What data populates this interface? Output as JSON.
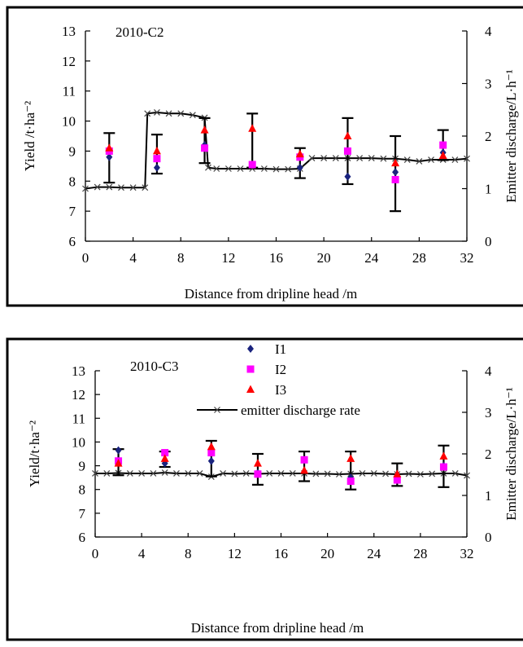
{
  "colors": {
    "I1": "#1a237e",
    "I2": "#ff00ff",
    "I3": "#ff0000",
    "emitter": "#000000"
  },
  "chart_data": [
    {
      "type": "scatter",
      "title": "2010-C2",
      "xlabel": "Distance from dripline head /m",
      "ylabel": "Yield /t·ha⁻²",
      "y2label": "Emitter discharge/L·h⁻¹",
      "xlim": [
        0,
        32
      ],
      "ylim": [
        6,
        13
      ],
      "y2lim": [
        0,
        4
      ],
      "x_ticks": [
        "0",
        "4",
        "8",
        "12",
        "16",
        "20",
        "24",
        "28",
        "32"
      ],
      "y_ticks": [
        "6",
        "7",
        "8",
        "9",
        "10",
        "11",
        "12",
        "13"
      ],
      "y2_ticks": [
        "0",
        "1",
        "2",
        "3",
        "4"
      ],
      "legend": null,
      "error_bars": [
        {
          "x": 2,
          "low": 7.95,
          "high": 9.6
        },
        {
          "x": 6,
          "low": 8.25,
          "high": 9.55
        },
        {
          "x": 10,
          "low": 8.6,
          "high": 10.1
        },
        {
          "x": 14,
          "low": 8.45,
          "high": 10.25
        },
        {
          "x": 18,
          "low": 8.1,
          "high": 9.1
        },
        {
          "x": 22,
          "low": 7.9,
          "high": 10.1
        },
        {
          "x": 26,
          "low": 7.0,
          "high": 9.5
        },
        {
          "x": 30,
          "low": 8.7,
          "high": 9.7
        }
      ],
      "series": [
        {
          "name": "I1",
          "marker": "diamond",
          "x": [
            2,
            6,
            10,
            14,
            18,
            22,
            26,
            30
          ],
          "y": [
            8.8,
            8.45,
            9.2,
            8.55,
            8.45,
            8.15,
            8.3,
            8.95
          ]
        },
        {
          "name": "I2",
          "marker": "square",
          "x": [
            2,
            6,
            10,
            14,
            18,
            22,
            26,
            30
          ],
          "y": [
            9.0,
            8.75,
            9.1,
            8.55,
            8.8,
            9.0,
            8.05,
            9.2
          ]
        },
        {
          "name": "I3",
          "marker": "triangle",
          "x": [
            2,
            6,
            10,
            14,
            18,
            22,
            26,
            30
          ],
          "y": [
            9.1,
            9.0,
            9.7,
            9.75,
            8.9,
            9.5,
            8.6,
            8.85
          ]
        },
        {
          "name": "emitter discharge rate",
          "axis": "right",
          "marker": "x",
          "line": true,
          "x": [
            0,
            1,
            2,
            3,
            4,
            5,
            5.2,
            6,
            7,
            8,
            9,
            10,
            10.3,
            11,
            12,
            13,
            14,
            15,
            16,
            17,
            18,
            19,
            20,
            21,
            22,
            23,
            24,
            25,
            26,
            27,
            28,
            29,
            30,
            31,
            32
          ],
          "y": [
            1.0,
            1.03,
            1.03,
            1.02,
            1.02,
            1.02,
            2.43,
            2.45,
            2.43,
            2.43,
            2.4,
            2.35,
            1.4,
            1.38,
            1.38,
            1.38,
            1.38,
            1.38,
            1.37,
            1.37,
            1.38,
            1.58,
            1.58,
            1.58,
            1.58,
            1.58,
            1.58,
            1.57,
            1.57,
            1.55,
            1.52,
            1.55,
            1.55,
            1.55,
            1.57
          ]
        }
      ]
    },
    {
      "type": "scatter",
      "title": "2010-C3",
      "xlabel": "Distance from dripline head /m",
      "ylabel": "Yield/t·ha⁻²",
      "y2label": "Emitter discharge/L·h⁻¹",
      "xlim": [
        0,
        32
      ],
      "ylim": [
        6,
        13
      ],
      "y2lim": [
        0,
        4
      ],
      "x_ticks": [
        "0",
        "4",
        "8",
        "12",
        "16",
        "20",
        "24",
        "28",
        "32"
      ],
      "y_ticks": [
        "6",
        "7",
        "8",
        "9",
        "10",
        "11",
        "12",
        "13"
      ],
      "y2_ticks": [
        "0",
        "1",
        "2",
        "3",
        "4"
      ],
      "legend": "top-center",
      "error_bars": [
        {
          "x": 2,
          "low": 8.6,
          "high": 9.7
        },
        {
          "x": 6,
          "low": 8.95,
          "high": 9.6
        },
        {
          "x": 10,
          "low": 8.55,
          "high": 10.05
        },
        {
          "x": 14,
          "low": 8.2,
          "high": 9.5
        },
        {
          "x": 18,
          "low": 8.35,
          "high": 9.6
        },
        {
          "x": 22,
          "low": 8.0,
          "high": 9.6
        },
        {
          "x": 26,
          "low": 8.15,
          "high": 9.1
        },
        {
          "x": 30,
          "low": 8.1,
          "high": 9.85
        }
      ],
      "series": [
        {
          "name": "I1",
          "marker": "diamond",
          "x": [
            2,
            6,
            10,
            14,
            18,
            22,
            26,
            30
          ],
          "y": [
            9.65,
            9.1,
            9.2,
            8.7,
            9.25,
            8.5,
            8.55,
            9.0
          ]
        },
        {
          "name": "I2",
          "marker": "square",
          "x": [
            2,
            6,
            10,
            14,
            18,
            22,
            26,
            30
          ],
          "y": [
            9.2,
            9.55,
            9.55,
            8.65,
            9.25,
            8.35,
            8.4,
            8.95
          ]
        },
        {
          "name": "I3",
          "marker": "triangle",
          "x": [
            2,
            6,
            10,
            14,
            18,
            22,
            26,
            30
          ],
          "y": [
            9.1,
            9.3,
            9.8,
            9.1,
            8.8,
            9.3,
            8.65,
            9.4
          ]
        },
        {
          "name": "emitter discharge rate",
          "axis": "right",
          "marker": "x",
          "line": true,
          "x": [
            0,
            1,
            2,
            3,
            4,
            5,
            6,
            7,
            8,
            9,
            10,
            11,
            12,
            13,
            14,
            15,
            16,
            17,
            18,
            19,
            20,
            21,
            22,
            23,
            24,
            25,
            26,
            27,
            28,
            29,
            30,
            31,
            32
          ],
          "y": [
            1.53,
            1.53,
            1.54,
            1.53,
            1.53,
            1.53,
            1.55,
            1.53,
            1.53,
            1.53,
            1.45,
            1.53,
            1.52,
            1.53,
            1.52,
            1.53,
            1.53,
            1.53,
            1.53,
            1.52,
            1.52,
            1.51,
            1.52,
            1.53,
            1.53,
            1.52,
            1.51,
            1.52,
            1.51,
            1.52,
            1.53,
            1.53,
            1.48
          ]
        }
      ]
    }
  ]
}
